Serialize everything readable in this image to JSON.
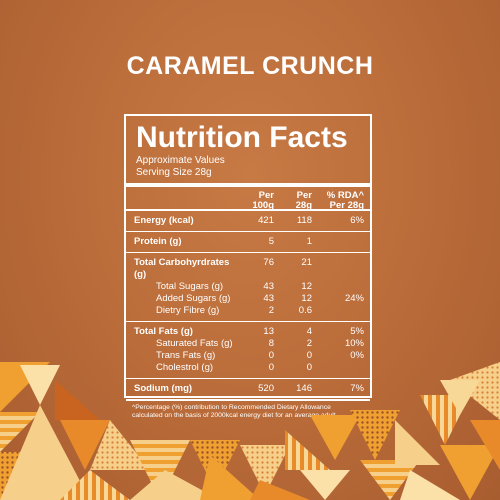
{
  "product_name": "CARAMEL CRUNCH",
  "label": {
    "title": "Nutrition Facts",
    "approx": "Approximate Values",
    "serving": "Serving Size 28g",
    "columns": {
      "per100_line1": "Per",
      "per100_line2": "100g",
      "per28_line1": "Per",
      "per28_line2": "28g",
      "rda_line1": "% RDA^",
      "rda_line2": "Per 28g"
    },
    "rows": [
      {
        "label": "Energy (kcal)",
        "per100": "421",
        "per28": "118",
        "rda": "6%"
      },
      {
        "label": "Protein (g)",
        "per100": "5",
        "per28": "1",
        "rda": ""
      },
      {
        "label": "Total Carbohyrdrates (g)",
        "per100": "76",
        "per28": "21",
        "rda": ""
      },
      {
        "label": "Total Sugars (g)",
        "per100": "43",
        "per28": "12",
        "rda": ""
      },
      {
        "label": "Added Sugars (g)",
        "per100": "43",
        "per28": "12",
        "rda": "24%"
      },
      {
        "label": "Dietry Fibre (g)",
        "per100": "2",
        "per28": "0.6",
        "rda": ""
      },
      {
        "label": "Total Fats (g)",
        "per100": "13",
        "per28": "4",
        "rda": "5%"
      },
      {
        "label": "Saturated Fats (g)",
        "per100": "8",
        "per28": "2",
        "rda": "10%"
      },
      {
        "label": "Trans Fats (g)",
        "per100": "0",
        "per28": "0",
        "rda": "0%"
      },
      {
        "label": "Cholestrol (g)",
        "per100": "0",
        "per28": "0",
        "rda": ""
      },
      {
        "label": "Sodium (mg)",
        "per100": "520",
        "per28": "146",
        "rda": "7%"
      }
    ],
    "footnote_line1": "^Percentage (%) contribution to Recommended Dietary Allowance",
    "footnote_line2": "calculated on the basis of 2000kcal energy diet for an average adult"
  },
  "colors": {
    "background": "#b86a38",
    "pattern_orange": "#f0a030",
    "pattern_cream": "#f6cf8a",
    "pattern_dark": "#9a5228",
    "pattern_light": "#fbe0a8"
  }
}
